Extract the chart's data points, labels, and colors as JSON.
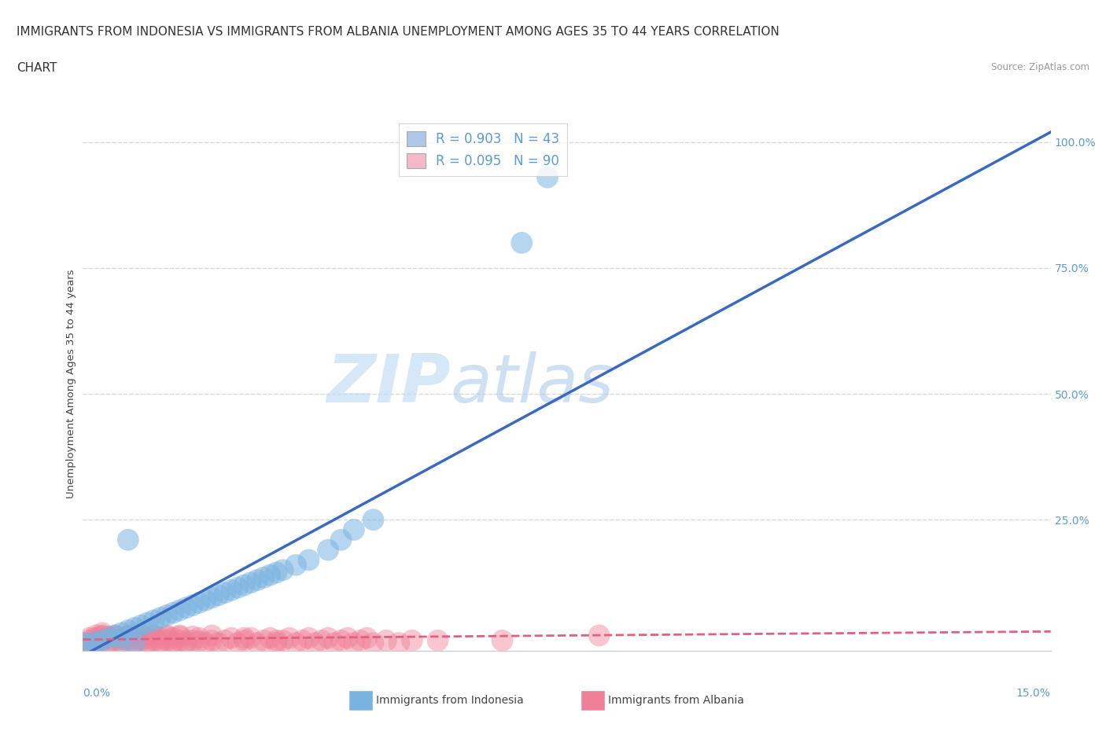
{
  "title_line1": "IMMIGRANTS FROM INDONESIA VS IMMIGRANTS FROM ALBANIA UNEMPLOYMENT AMONG AGES 35 TO 44 YEARS CORRELATION",
  "title_line2": "CHART",
  "source_text": "Source: ZipAtlas.com",
  "xlabel_bottom_left": "0.0%",
  "xlabel_bottom_right": "15.0%",
  "ylabel": "Unemployment Among Ages 35 to 44 years",
  "right_yticks": [
    "25.0%",
    "50.0%",
    "75.0%",
    "100.0%"
  ],
  "right_ytick_vals": [
    0.25,
    0.5,
    0.75,
    1.0
  ],
  "legend_entries": [
    {
      "label": "R = 0.903   N = 43",
      "color": "#aec6e8"
    },
    {
      "label": "R = 0.095   N = 90",
      "color": "#f4b8c8"
    }
  ],
  "watermark_zip": "ZIP",
  "watermark_atlas": "atlas",
  "indonesia_color": "#7ab3e0",
  "albania_color": "#f08098",
  "indonesia_line_color": "#3a6abf",
  "albania_line_color": "#e06080",
  "indo_line_x": [
    0.0,
    0.15
  ],
  "indo_line_y": [
    -0.02,
    1.02
  ],
  "alba_line_x": [
    0.0,
    0.15
  ],
  "alba_line_y": [
    0.012,
    0.028
  ],
  "indonesia_scatter": {
    "x": [
      0.0,
      0.003,
      0.004,
      0.005,
      0.006,
      0.007,
      0.008,
      0.009,
      0.01,
      0.011,
      0.012,
      0.013,
      0.014,
      0.015,
      0.016,
      0.017,
      0.018,
      0.019,
      0.02,
      0.021,
      0.022,
      0.023,
      0.024,
      0.025,
      0.026,
      0.027,
      0.028,
      0.029,
      0.03,
      0.031,
      0.033,
      0.035,
      0.038,
      0.04,
      0.042,
      0.045,
      0.001,
      0.002,
      0.006,
      0.008,
      0.007,
      0.072,
      0.068
    ],
    "y": [
      0.005,
      0.01,
      0.015,
      0.02,
      0.025,
      0.03,
      0.035,
      0.04,
      0.045,
      0.05,
      0.055,
      0.06,
      0.065,
      0.07,
      0.075,
      0.08,
      0.085,
      0.09,
      0.095,
      0.1,
      0.105,
      0.11,
      0.115,
      0.12,
      0.125,
      0.13,
      0.135,
      0.14,
      0.145,
      0.15,
      0.16,
      0.17,
      0.19,
      0.21,
      0.23,
      0.25,
      0.003,
      0.007,
      0.013,
      0.005,
      0.21,
      0.93,
      0.8
    ]
  },
  "albania_scatter": {
    "x": [
      0.0,
      0.001,
      0.002,
      0.002,
      0.003,
      0.003,
      0.004,
      0.004,
      0.005,
      0.005,
      0.006,
      0.006,
      0.007,
      0.007,
      0.008,
      0.008,
      0.009,
      0.009,
      0.01,
      0.01,
      0.011,
      0.011,
      0.012,
      0.012,
      0.013,
      0.013,
      0.014,
      0.014,
      0.015,
      0.015,
      0.016,
      0.017,
      0.018,
      0.019,
      0.02,
      0.02,
      0.021,
      0.022,
      0.023,
      0.024,
      0.025,
      0.026,
      0.027,
      0.028,
      0.029,
      0.03,
      0.031,
      0.032,
      0.033,
      0.034,
      0.035,
      0.036,
      0.037,
      0.038,
      0.039,
      0.04,
      0.041,
      0.042,
      0.043,
      0.044,
      0.045,
      0.047,
      0.049,
      0.051,
      0.001,
      0.002,
      0.003,
      0.004,
      0.005,
      0.006,
      0.007,
      0.008,
      0.009,
      0.01,
      0.011,
      0.012,
      0.013,
      0.014,
      0.015,
      0.016,
      0.017,
      0.018,
      0.025,
      0.03,
      0.055,
      0.002,
      0.003,
      0.004,
      0.065,
      0.08
    ],
    "y": [
      0.005,
      0.01,
      0.005,
      0.015,
      0.01,
      0.02,
      0.005,
      0.015,
      0.01,
      0.02,
      0.005,
      0.015,
      0.01,
      0.02,
      0.005,
      0.015,
      0.01,
      0.02,
      0.005,
      0.015,
      0.01,
      0.02,
      0.005,
      0.015,
      0.01,
      0.02,
      0.005,
      0.015,
      0.01,
      0.02,
      0.005,
      0.01,
      0.015,
      0.005,
      0.01,
      0.02,
      0.005,
      0.01,
      0.015,
      0.005,
      0.01,
      0.015,
      0.005,
      0.01,
      0.015,
      0.005,
      0.01,
      0.015,
      0.005,
      0.01,
      0.015,
      0.005,
      0.01,
      0.015,
      0.005,
      0.01,
      0.015,
      0.005,
      0.01,
      0.015,
      0.005,
      0.01,
      0.005,
      0.01,
      0.015,
      0.008,
      0.018,
      0.008,
      0.018,
      0.008,
      0.018,
      0.008,
      0.018,
      0.008,
      0.018,
      0.008,
      0.018,
      0.008,
      0.018,
      0.008,
      0.018,
      0.008,
      0.015,
      0.01,
      0.01,
      0.02,
      0.025,
      0.018,
      0.01,
      0.02
    ]
  },
  "xlim": [
    0.0,
    0.15
  ],
  "ylim": [
    -0.01,
    1.05
  ],
  "grid_yticks": [
    0.25,
    0.5,
    0.75,
    1.0
  ],
  "grid_color": "#d8d8d8",
  "background_color": "#ffffff",
  "title_fontsize": 11,
  "axis_label_fontsize": 9.5,
  "tick_fontsize": 10
}
